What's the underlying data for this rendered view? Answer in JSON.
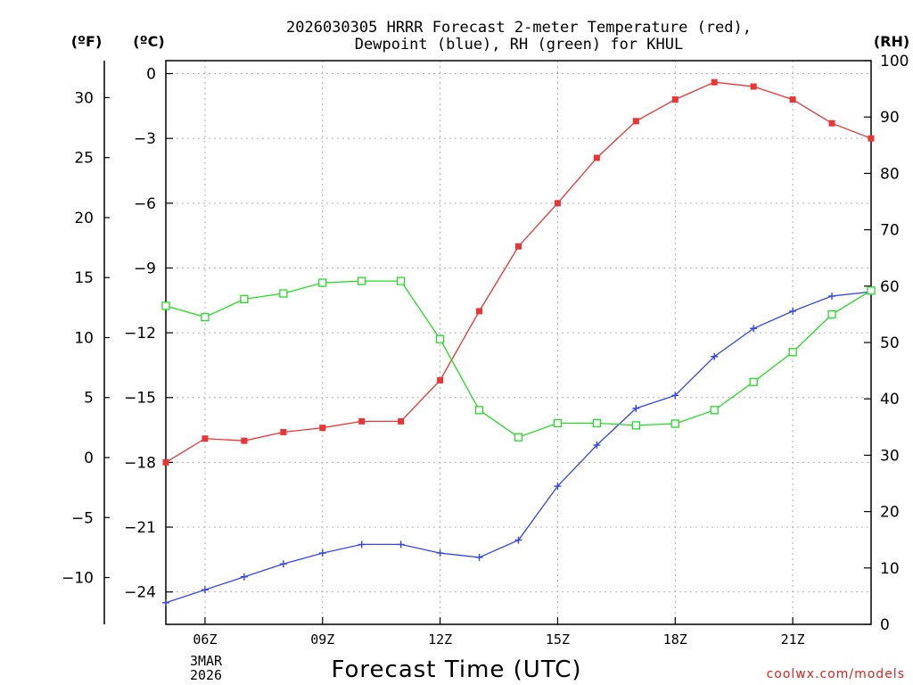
{
  "chart_data": {
    "type": "line",
    "title_line1": "2026030305 HRRR Forecast 2-meter Temperature (red),",
    "title_line2": "Dewpoint (blue), RH (green) for KHUL",
    "xlabel": "Forecast Time (UTC)",
    "watermark": "coolwx.com/models",
    "date_label_line1": "3MAR",
    "date_label_line2": "2026",
    "unit_f": "(ºF)",
    "unit_c": "(ºC)",
    "unit_rh": "(RH)",
    "x_hours": [
      5,
      6,
      7,
      8,
      9,
      10,
      11,
      12,
      13,
      14,
      15,
      16,
      17,
      18,
      19,
      20,
      21,
      22,
      23
    ],
    "x_ticks": [
      {
        "hour": 6,
        "label": "06Z"
      },
      {
        "hour": 9,
        "label": "09Z"
      },
      {
        "hour": 12,
        "label": "12Z"
      },
      {
        "hour": 15,
        "label": "15Z"
      },
      {
        "hour": 18,
        "label": "18Z"
      },
      {
        "hour": 21,
        "label": "21Z"
      }
    ],
    "xlim": [
      5,
      23
    ],
    "left_axis_c": {
      "ylim": [
        -25.5,
        0.6
      ],
      "ticks": [
        0,
        -3,
        -6,
        -9,
        -12,
        -15,
        -18,
        -21,
        -24
      ],
      "labels": [
        "0",
        "−3",
        "−6",
        "−9",
        "−12",
        "−15",
        "−18",
        "−21",
        "−24"
      ]
    },
    "left_axis_f": {
      "ticks": [
        30,
        25,
        20,
        15,
        10,
        5,
        0,
        -5,
        -10
      ],
      "labels": [
        "30",
        "25",
        "20",
        "15",
        "10",
        "5",
        "0",
        "−5",
        "−10"
      ]
    },
    "right_axis_rh": {
      "ylim": [
        0,
        100
      ],
      "ticks": [
        0,
        10,
        20,
        30,
        40,
        50,
        60,
        70,
        80,
        90,
        100
      ],
      "labels": [
        "0",
        "10",
        "20",
        "30",
        "40",
        "50",
        "60",
        "70",
        "80",
        "90",
        "100"
      ]
    },
    "series": [
      {
        "name": "Temperature",
        "color": "#ee3333",
        "marker": "filled-square",
        "axis": "celsius",
        "values": [
          -18.0,
          -16.9,
          -17.0,
          -16.6,
          -16.4,
          -16.1,
          -16.1,
          -14.2,
          -11.0,
          -8.0,
          -6.0,
          -3.9,
          -2.2,
          -1.2,
          -0.4,
          -0.6,
          -1.2,
          -2.3,
          -3.0
        ]
      },
      {
        "name": "Dewpoint",
        "color": "#3344ee",
        "marker": "plus",
        "axis": "celsius",
        "values": [
          -24.5,
          -23.9,
          -23.3,
          -22.7,
          -22.2,
          -21.8,
          -21.8,
          -22.2,
          -22.4,
          -21.6,
          -19.1,
          -17.2,
          -15.5,
          -14.9,
          -13.1,
          -11.8,
          -11.0,
          -10.3,
          -10.1
        ]
      },
      {
        "name": "RH",
        "color": "#22dd22",
        "marker": "open-square",
        "axis": "rh",
        "values": [
          56.5,
          54.5,
          57.7,
          58.7,
          60.6,
          60.9,
          60.9,
          50.6,
          38.0,
          33.2,
          35.7,
          35.7,
          35.3,
          35.6,
          38.0,
          43.0,
          48.3,
          55.0,
          59.2
        ]
      }
    ]
  }
}
